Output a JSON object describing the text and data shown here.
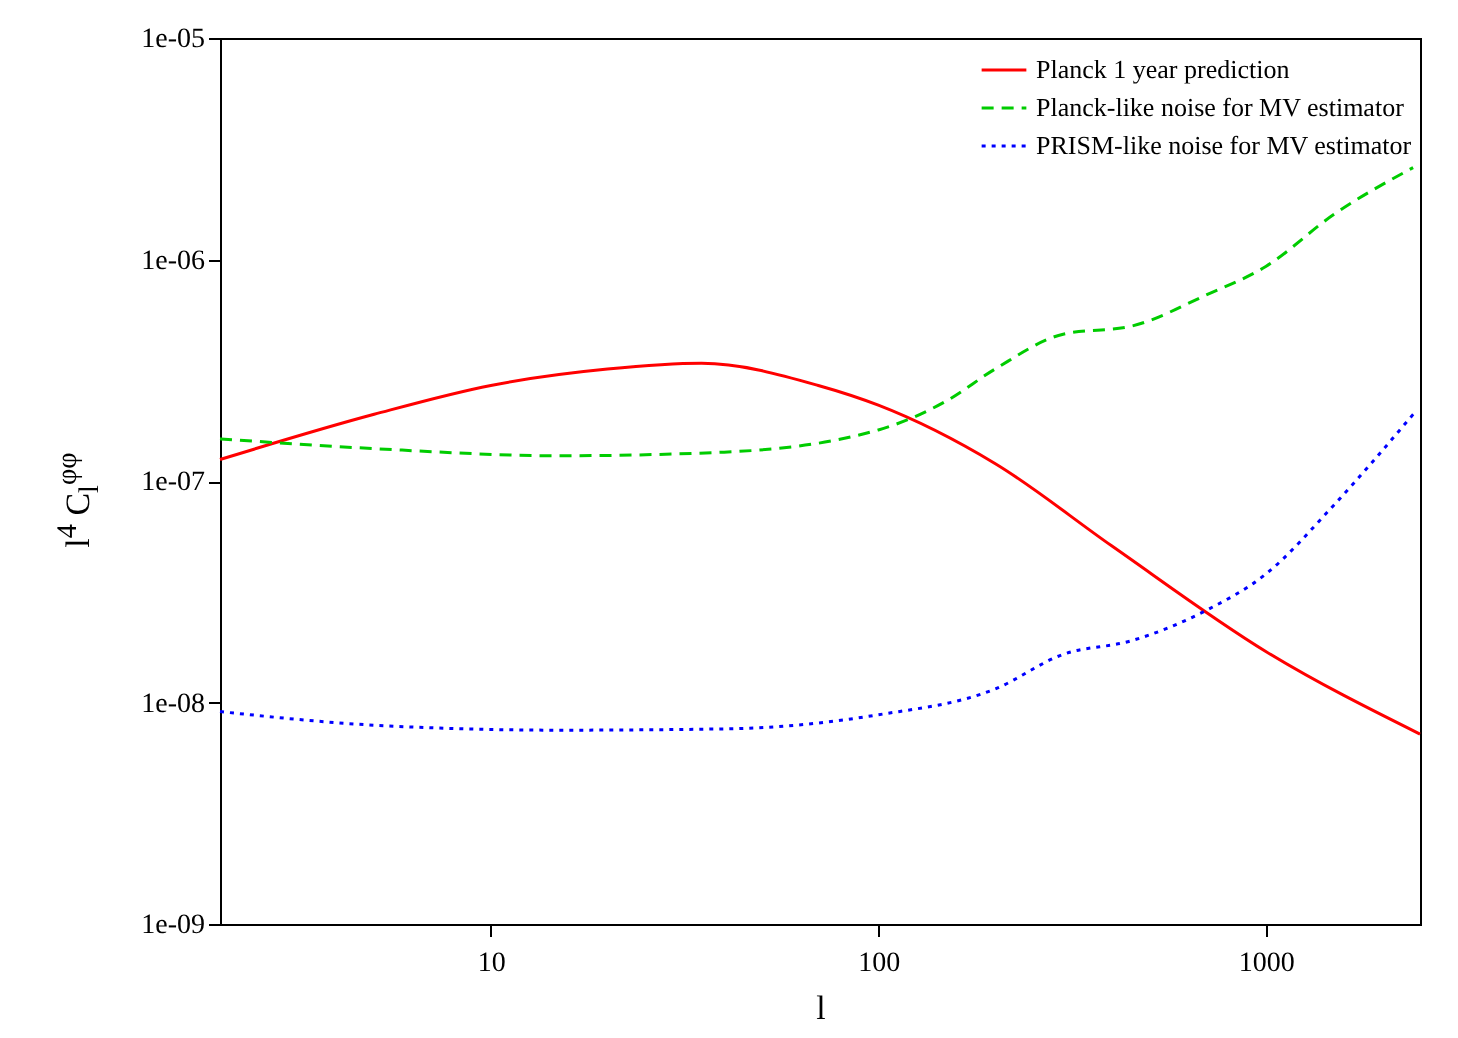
{
  "chart_data": {
    "type": "line",
    "xlabel": "l",
    "ylabel": "l$^{4}$ C$_{l}$$^{φφ}$",
    "log": "xy",
    "grid": false,
    "legend": "top right",
    "xlim": [
      2,
      2500
    ],
    "xticks": [
      10,
      100,
      1000
    ],
    "ylim": [
      1e-09,
      1e-05
    ],
    "yticks": [
      {
        "value": 1e-09,
        "label": "1e-09"
      },
      {
        "value": 1e-08,
        "label": "1e-08"
      },
      {
        "value": 1e-07,
        "label": "1e-07"
      },
      {
        "value": 1e-06,
        "label": "1e-06"
      },
      {
        "value": 1e-05,
        "label": "1e-05"
      }
    ],
    "series": [
      {
        "name": "Planck 1 year prediction",
        "color": "#ff0000",
        "line_style": "solid",
        "x": [
          2,
          5,
          10,
          20,
          35,
          70,
          100,
          200,
          400,
          1000,
          2500
        ],
        "values": [
          1.25e-07,
          2e-07,
          2.7e-07,
          3.2e-07,
          3.4e-07,
          2.7e-07,
          2.2e-07,
          1.2e-07,
          5.1e-08,
          1.7e-08,
          7.2e-09
        ]
      },
      {
        "name": "Planck-like noise for MV estimator",
        "color": "#00cc00",
        "line_style": "dashed",
        "x": [
          2,
          5,
          15,
          40,
          100,
          150,
          200,
          300,
          450,
          700,
          1000,
          1500,
          2400
        ],
        "values": [
          1.55e-07,
          1.4e-07,
          1.3e-07,
          1.35e-07,
          1.7e-07,
          2.3e-07,
          3.2e-07,
          4.6e-07,
          5e-07,
          6.9e-07,
          9.3e-07,
          1.6e-06,
          2.6e-06
        ]
      },
      {
        "name": "PRISM-like noise for MV estimator",
        "color": "#0000ff",
        "line_style": "dotted",
        "x": [
          2,
          5,
          15,
          40,
          100,
          200,
          300,
          450,
          700,
          1000,
          1500,
          2400
        ],
        "values": [
          9.1e-09,
          7.9e-09,
          7.5e-09,
          7.6e-09,
          8.8e-09,
          1.15e-08,
          1.65e-08,
          1.9e-08,
          2.6e-08,
          3.8e-08,
          7.8e-08,
          2e-07
        ]
      }
    ]
  }
}
